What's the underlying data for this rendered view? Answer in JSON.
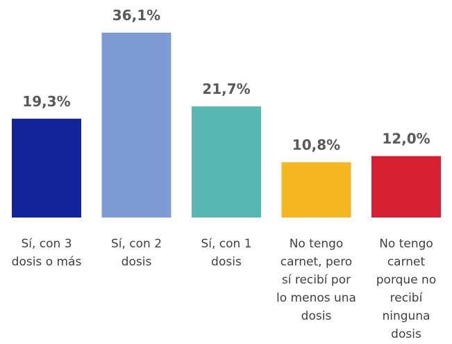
{
  "chart_data": {
    "type": "bar",
    "categories": [
      "Sí, con 3 dosis o más",
      "Sí, con 2 dosis",
      "Sí, con 1 dosis",
      "No tengo carnet, pero sí recibí por lo menos una dosis",
      "No tengo carnet porque no recibí ninguna dosis"
    ],
    "values": [
      19.3,
      36.1,
      21.7,
      10.8,
      12.0
    ],
    "value_labels": [
      "19,3%",
      "36,1%",
      "21,7%",
      "10,8%",
      "12,0%"
    ],
    "colors": [
      "#13239a",
      "#7f9bd3",
      "#5ab8b2",
      "#f6b622",
      "#d42030"
    ]
  }
}
